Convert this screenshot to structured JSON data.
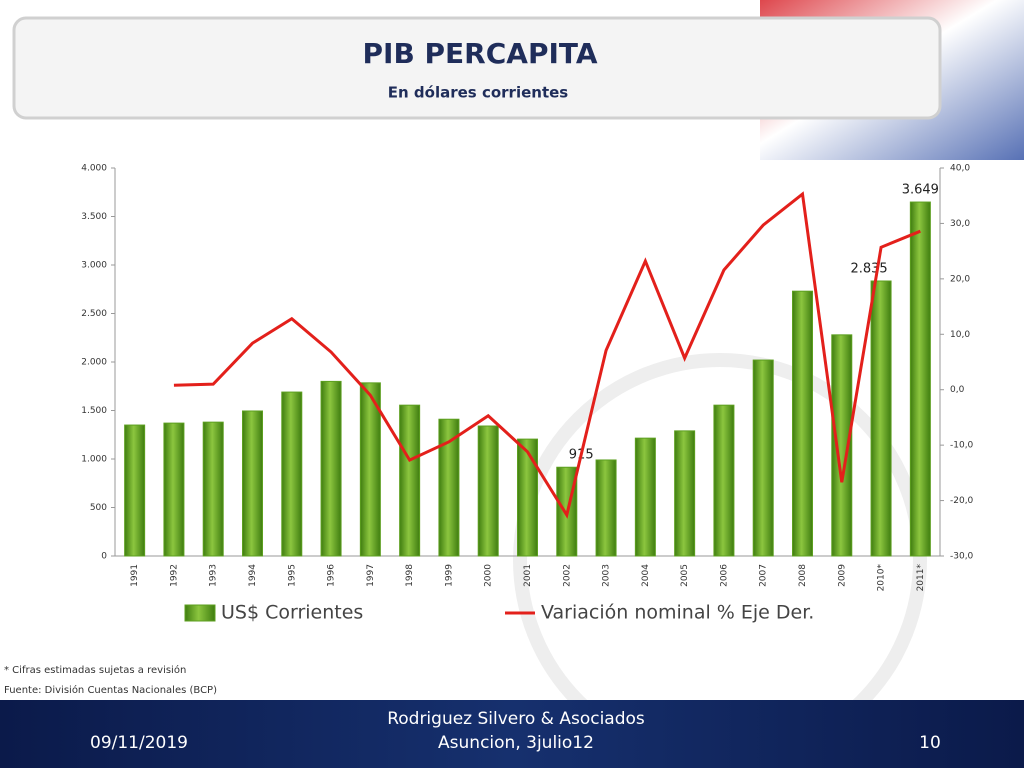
{
  "chart_data": {
    "type": "bar_line",
    "title": "PIB PERCAPITA",
    "subtitle": "En dólares corrientes",
    "categories": [
      "1991",
      "1992",
      "1993",
      "1994",
      "1995",
      "1996",
      "1997",
      "1998",
      "1999",
      "2000",
      "2001",
      "2002",
      "2003",
      "2004",
      "2005",
      "2006",
      "2007",
      "2008",
      "2009",
      "2010*",
      "2011*"
    ],
    "series": [
      {
        "name": "US$ Corrientes",
        "type": "bar",
        "color": "#5c9f1f",
        "values": [
          1350,
          1370,
          1380,
          1495,
          1690,
          1800,
          1785,
          1555,
          1410,
          1340,
          1205,
          915,
          990,
          1215,
          1290,
          1555,
          2020,
          2730,
          2280,
          2835,
          3649
        ],
        "value_labels": [
          null,
          null,
          null,
          null,
          null,
          null,
          null,
          null,
          null,
          null,
          null,
          "915",
          null,
          null,
          null,
          null,
          null,
          null,
          null,
          "2.835",
          "3.649"
        ]
      },
      {
        "name": "Variación nominal % Eje Der.",
        "type": "line",
        "axis": "y2",
        "color": "#e3201b",
        "values": [
          null,
          0.8,
          1.0,
          8.4,
          12.8,
          6.8,
          -1.0,
          -12.7,
          -9.4,
          -4.7,
          -11.2,
          -22.6,
          7.1,
          23.2,
          5.7,
          21.6,
          29.7,
          35.3,
          -16.7,
          25.7,
          28.6
        ]
      }
    ],
    "ylim": [
      0,
      4000
    ],
    "yticks": [
      0,
      500,
      {
        "value": 1000,
        "label": "1.000"
      },
      {
        "value": 1500,
        "label": "1.500"
      },
      {
        "value": 2000,
        "label": "2.000"
      },
      {
        "value": 2500,
        "label": "2.500"
      },
      {
        "value": 3000,
        "label": "3.000"
      },
      {
        "value": 3500,
        "label": "3.500"
      },
      {
        "value": 4000,
        "label": "4.000"
      }
    ],
    "y2lim": [
      -30,
      40
    ],
    "y2ticks": [
      {
        "value": -30,
        "label": "-30,0"
      },
      {
        "value": -20,
        "label": "-20,0"
      },
      {
        "value": -10,
        "label": "-10,0"
      },
      {
        "value": 0,
        "label": "0,0"
      },
      {
        "value": 10,
        "label": "10,0"
      },
      {
        "value": 20,
        "label": "20,0"
      },
      {
        "value": 30,
        "label": "30,0"
      },
      {
        "value": 40,
        "label": "40,0"
      }
    ],
    "legend": "bottom",
    "notes": [
      "* Cifras estimadas sujetas a revisión",
      "Fuente: División Cuentas Nacionales (BCP)"
    ]
  },
  "footer": {
    "date": "09/11/2019",
    "presenter": [
      "Rodriguez Silvero & Asociados",
      "Asuncion, 3julio12"
    ],
    "page": "10"
  }
}
